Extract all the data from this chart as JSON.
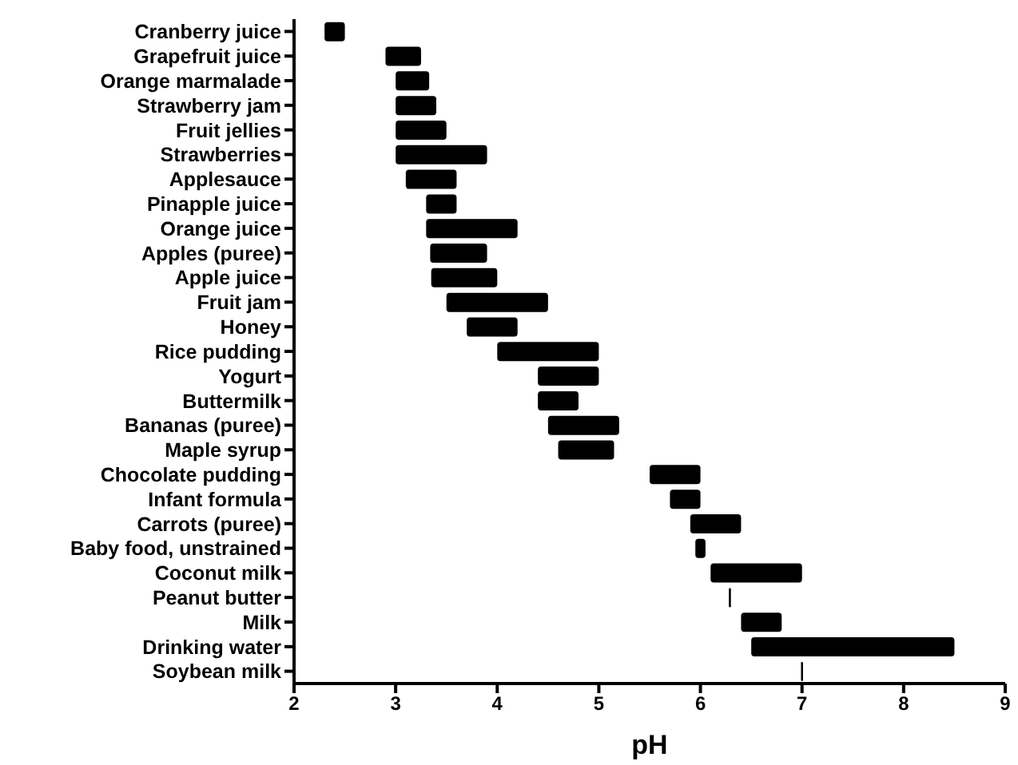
{
  "chart_data": {
    "type": "bar",
    "orientation": "horizontal",
    "xlabel": "pH",
    "categories": [
      "Cranberry juice",
      "Grapefruit juice",
      "Orange marmalade",
      "Strawberry jam",
      "Fruit jellies",
      "Strawberries",
      "Applesauce",
      "Pinapple juice",
      "Orange juice",
      "Apples (puree)",
      "Apple juice",
      "Fruit jam",
      "Honey",
      "Rice pudding",
      "Yogurt",
      "Buttermilk",
      "Bananas (puree)",
      "Maple syrup",
      "Chocolate pudding",
      "Infant formula",
      "Carrots (puree)",
      "Baby food, unstrained",
      "Coconut milk",
      "Peanut butter",
      "Milk",
      "Drinking water",
      "Soybean milk"
    ],
    "base": [
      2.3,
      2.9,
      3.0,
      3.0,
      3.0,
      3.0,
      3.1,
      3.3,
      3.3,
      3.34,
      3.35,
      3.5,
      3.7,
      4.0,
      4.4,
      4.4,
      4.5,
      4.6,
      5.5,
      5.7,
      5.9,
      5.95,
      6.1,
      6.28,
      6.4,
      6.5,
      6.99
    ],
    "values": [
      0.2,
      0.35,
      0.33,
      0.4,
      0.5,
      0.9,
      0.5,
      0.3,
      0.9,
      0.56,
      0.65,
      1.0,
      0.5,
      1.0,
      0.6,
      0.4,
      0.7,
      0.55,
      0.5,
      0.3,
      0.5,
      0.1,
      0.9,
      0.02,
      0.4,
      2.0,
      0.02
    ],
    "color": "#000000",
    "xlim": [
      2,
      9
    ],
    "xticks": [
      2,
      3,
      4,
      5,
      6,
      7,
      8,
      9
    ]
  }
}
